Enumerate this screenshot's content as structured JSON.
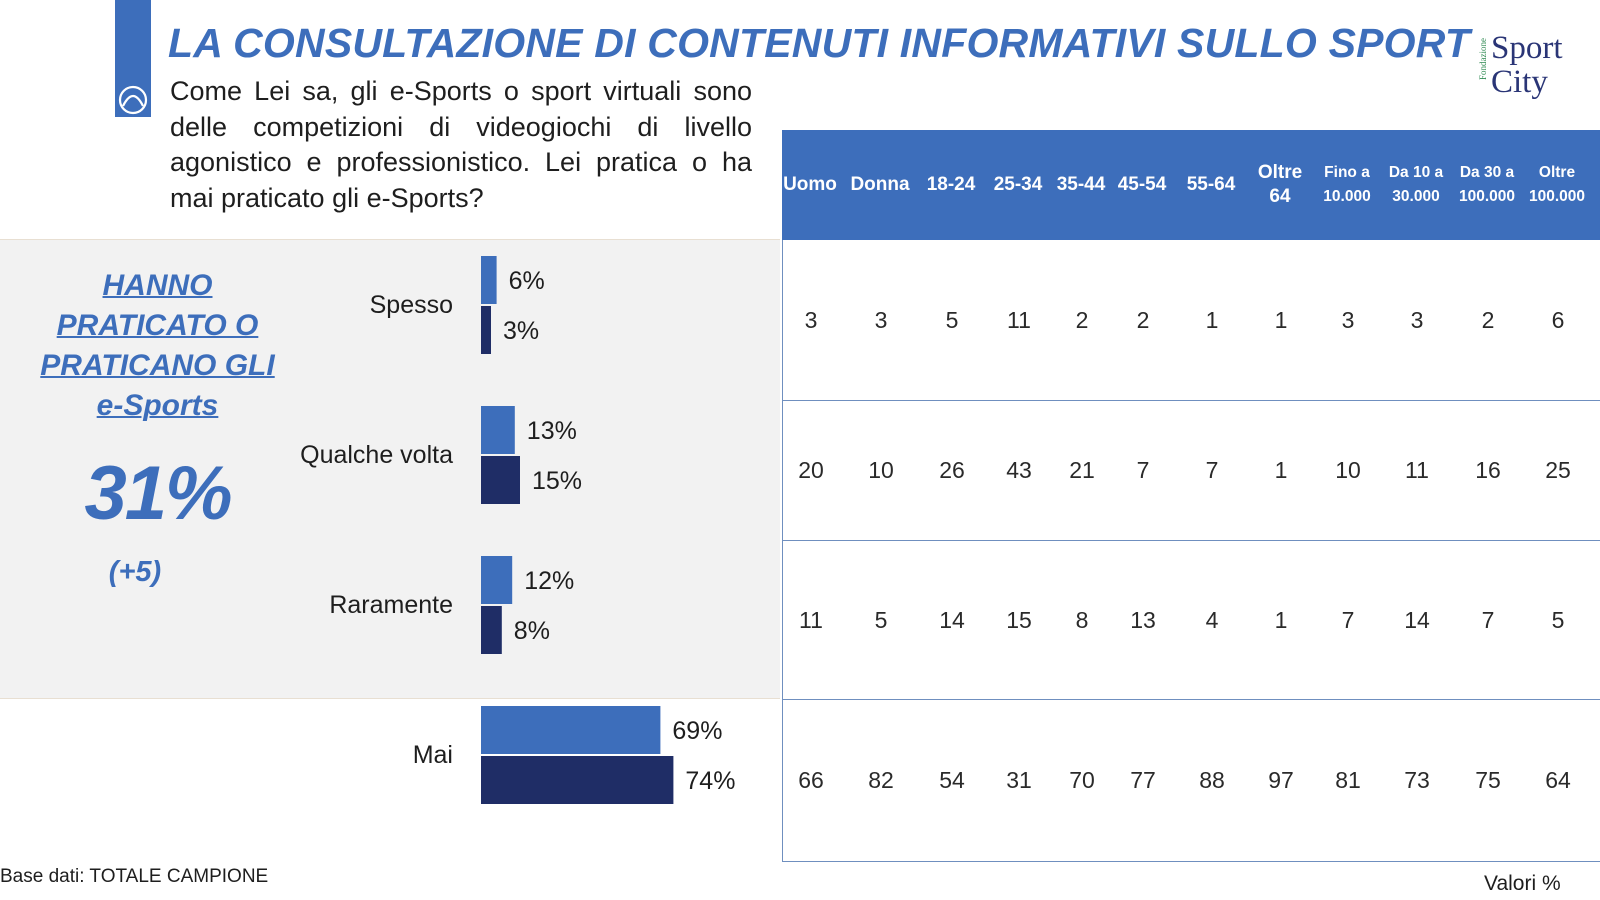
{
  "header": {
    "title": "LA CONSULTAZIONE DI CONTENUTI INFORMATIVI SULLO SPORT",
    "logo_small": "Fondazione",
    "logo_word1": "Sport",
    "logo_word2": "City"
  },
  "question": "Come Lei sa, gli e-Sports o sport virtuali sono delle competizioni di videogiochi di livello agonistico e professionistico. Lei pratica o ha mai praticato gli e-Sports?",
  "kpi": {
    "label_line1": "HANNO",
    "label_line2": "PRATICATO O",
    "label_line3": "PRATICANO GLI",
    "label_line4": "e-Sports",
    "value": "31%",
    "delta": "(+5)"
  },
  "chart_data": {
    "type": "bar",
    "orientation": "horizontal",
    "categories": [
      "Spesso",
      "Qualche volta",
      "Raramente",
      "Mai"
    ],
    "series": [
      {
        "values": [
          6,
          13,
          12,
          69
        ],
        "color": "#3d6ebb"
      },
      {
        "values": [
          3,
          15,
          8,
          74
        ],
        "color": "#1f2d66"
      }
    ],
    "value_suffix": "%",
    "table": {
      "columns": [
        [
          "Uomo"
        ],
        [
          "Donna"
        ],
        [
          "18-24"
        ],
        [
          "25-34"
        ],
        [
          "35-44"
        ],
        [
          "45-54"
        ],
        [
          "55-64"
        ],
        [
          "Oltre",
          "64"
        ],
        [
          "Fino a",
          "10.000"
        ],
        [
          "Da 10 a",
          "30.000"
        ],
        [
          "Da 30 a",
          "100.000"
        ],
        [
          "Oltre",
          "100.000"
        ]
      ],
      "rows": [
        [
          3,
          3,
          5,
          11,
          2,
          2,
          1,
          1,
          3,
          3,
          2,
          6
        ],
        [
          20,
          10,
          26,
          43,
          21,
          7,
          7,
          1,
          10,
          11,
          16,
          25
        ],
        [
          11,
          5,
          14,
          15,
          8,
          13,
          4,
          1,
          7,
          14,
          7,
          5
        ],
        [
          66,
          82,
          54,
          31,
          70,
          77,
          88,
          97,
          81,
          73,
          75,
          64
        ]
      ]
    }
  },
  "footer": {
    "base": "Base dati: TOTALE CAMPIONE",
    "units": "Valori %"
  }
}
